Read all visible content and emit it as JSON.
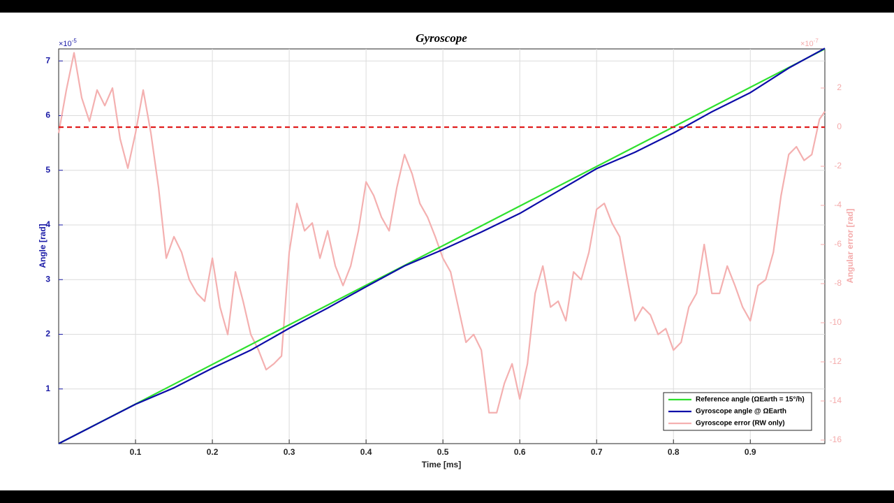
{
  "chart_data": {
    "type": "line",
    "title": "Gyroscope",
    "xlabel": "Time [ms]",
    "ylabel": "Angle [rad]",
    "y2label": "Angular error [rad]",
    "y_exponent": {
      "base": "×10",
      "exponent": "-5"
    },
    "y2_exponent": {
      "base": "×10",
      "exponent": "-7"
    },
    "xlim": [
      0,
      0.997
    ],
    "xticks": [
      0.1,
      0.2,
      0.3,
      0.4,
      0.5,
      0.6,
      0.7,
      0.8,
      0.9
    ],
    "ylim": [
      0,
      7.22
    ],
    "yticks": [
      1,
      2,
      3,
      4,
      5,
      6,
      7
    ],
    "y2lim": [
      -16.18,
      4
    ],
    "y2ticks": [
      -16,
      -14,
      -12,
      -10,
      -8,
      -6,
      -4,
      -2,
      0,
      2
    ],
    "grid": true,
    "legend": "lower right",
    "reference_line": {
      "value": 0,
      "axis": "y2",
      "color": "#e01e1e"
    },
    "series": [
      {
        "name": "Reference angle (ΩEarth = 15°/h)",
        "color": "#2ee02e",
        "x": [
          0,
          0.997
        ],
        "values": [
          0,
          7.22
        ]
      },
      {
        "name": "Gyroscope angle @ ΩEarth",
        "color": "#0c0ca8",
        "x": [
          0,
          0.05,
          0.1,
          0.15,
          0.2,
          0.25,
          0.3,
          0.35,
          0.4,
          0.45,
          0.5,
          0.55,
          0.6,
          0.65,
          0.7,
          0.75,
          0.8,
          0.85,
          0.9,
          0.95,
          0.997
        ],
        "values": [
          0,
          0.36,
          0.72,
          1.02,
          1.38,
          1.71,
          2.11,
          2.48,
          2.87,
          3.25,
          3.55,
          3.87,
          4.21,
          4.62,
          5.03,
          5.33,
          5.68,
          6.07,
          6.42,
          6.87,
          7.23
        ]
      },
      {
        "name": "Gyroscope error (RW only)",
        "color": "#f4b0b0",
        "axis": "y2",
        "x": [
          0,
          0.01,
          0.02,
          0.03,
          0.04,
          0.05,
          0.06,
          0.07,
          0.08,
          0.09,
          0.1,
          0.11,
          0.12,
          0.13,
          0.14,
          0.15,
          0.16,
          0.17,
          0.18,
          0.19,
          0.2,
          0.21,
          0.22,
          0.23,
          0.24,
          0.25,
          0.26,
          0.27,
          0.28,
          0.29,
          0.3,
          0.31,
          0.32,
          0.33,
          0.34,
          0.35,
          0.36,
          0.37,
          0.38,
          0.39,
          0.4,
          0.41,
          0.42,
          0.43,
          0.44,
          0.45,
          0.46,
          0.47,
          0.48,
          0.49,
          0.5,
          0.51,
          0.52,
          0.53,
          0.54,
          0.55,
          0.56,
          0.57,
          0.58,
          0.59,
          0.6,
          0.61,
          0.62,
          0.63,
          0.64,
          0.65,
          0.66,
          0.67,
          0.68,
          0.69,
          0.7,
          0.71,
          0.72,
          0.73,
          0.74,
          0.75,
          0.76,
          0.77,
          0.78,
          0.79,
          0.8,
          0.81,
          0.82,
          0.83,
          0.84,
          0.85,
          0.86,
          0.87,
          0.88,
          0.89,
          0.9,
          0.91,
          0.92,
          0.93,
          0.94,
          0.95,
          0.96,
          0.97,
          0.98,
          0.99,
          0.997
        ],
        "values": [
          -0.3,
          1.9,
          3.8,
          1.5,
          0.3,
          1.9,
          1.1,
          2.0,
          -0.6,
          -2.1,
          -0.3,
          1.9,
          -0.3,
          -3.1,
          -6.7,
          -5.6,
          -6.4,
          -7.8,
          -8.5,
          -8.9,
          -6.7,
          -9.2,
          -10.6,
          -7.4,
          -8.9,
          -10.6,
          -11.4,
          -12.4,
          -12.1,
          -11.7,
          -6.4,
          -3.9,
          -5.3,
          -4.9,
          -6.7,
          -5.3,
          -7.1,
          -8.1,
          -7.1,
          -5.3,
          -2.8,
          -3.5,
          -4.6,
          -5.3,
          -3.1,
          -1.4,
          -2.4,
          -3.9,
          -4.6,
          -5.6,
          -6.7,
          -7.4,
          -9.2,
          -11.0,
          -10.6,
          -11.4,
          -14.6,
          -14.6,
          -13.1,
          -12.1,
          -13.9,
          -12.1,
          -8.5,
          -7.1,
          -9.2,
          -8.9,
          -9.9,
          -7.4,
          -7.8,
          -6.4,
          -4.2,
          -3.9,
          -4.9,
          -5.6,
          -7.8,
          -9.9,
          -9.2,
          -9.6,
          -10.6,
          -10.3,
          -11.4,
          -11.0,
          -9.2,
          -8.5,
          -6.0,
          -8.5,
          -8.5,
          -7.1,
          -8.1,
          -9.2,
          -9.9,
          -8.1,
          -7.8,
          -6.4,
          -3.5,
          -1.4,
          -1.0,
          -1.7,
          -1.4,
          0.4,
          0.8
        ]
      }
    ]
  }
}
